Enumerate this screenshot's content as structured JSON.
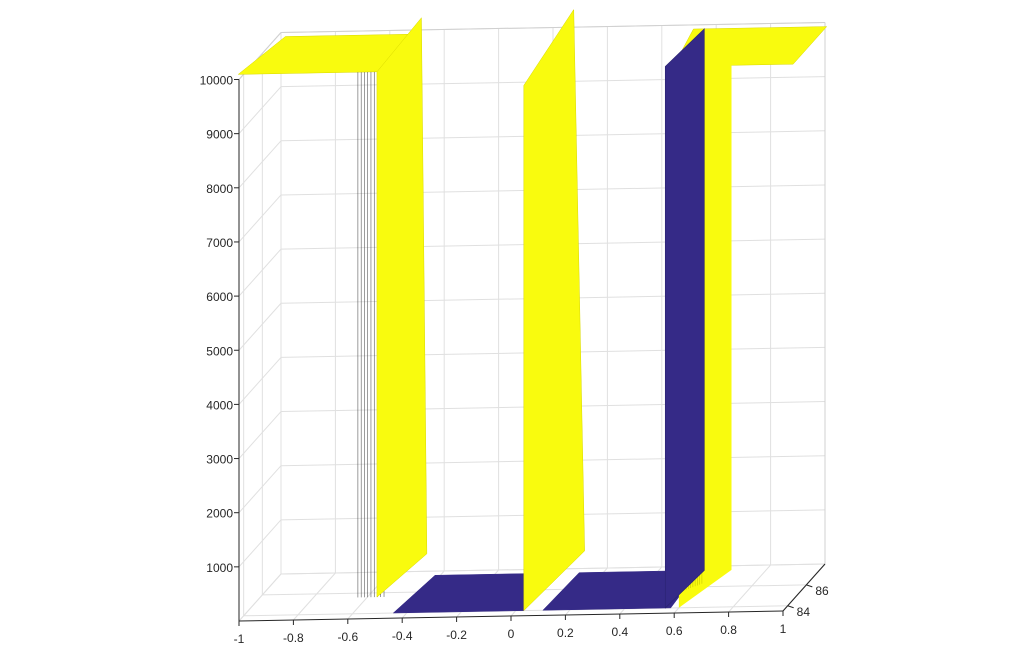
{
  "chart_data": {
    "type": "surface",
    "title": "",
    "xlabel": "",
    "ylabel": "",
    "zlabel": "",
    "x_ticks": [
      "-1",
      "-0.8",
      "-0.6",
      "-0.4",
      "-0.2",
      "0",
      "0.2",
      "0.4",
      "0.6",
      "0.8",
      "1"
    ],
    "y_ticks": [
      "84",
      "86"
    ],
    "z_ticks": [
      "1000",
      "2000",
      "3000",
      "4000",
      "5000",
      "6000",
      "7000",
      "8000",
      "9000",
      "10000"
    ],
    "xlim": [
      -1,
      1
    ],
    "ylim": [
      83.5,
      88
    ],
    "zlim": [
      0,
      10000
    ],
    "grid": true,
    "view": "3-D perspective, box visible, grid on",
    "surface": {
      "description": "Ridge-shaped surface: high plateau (10000) on both outer sides, a low trough (0) between the walls, and a thin spike at x≈0.05",
      "high_value": 10000,
      "low_value": 0,
      "walls_x": [
        -0.45,
        0.55
      ],
      "spike_x": 0.05,
      "colors": {
        "high": "#f9fb0e",
        "low": "#352a87"
      }
    },
    "colors": {
      "high": "#f9fb0e",
      "low": "#352a87",
      "grid": "#e0e0e0",
      "axis": "#262626"
    }
  }
}
